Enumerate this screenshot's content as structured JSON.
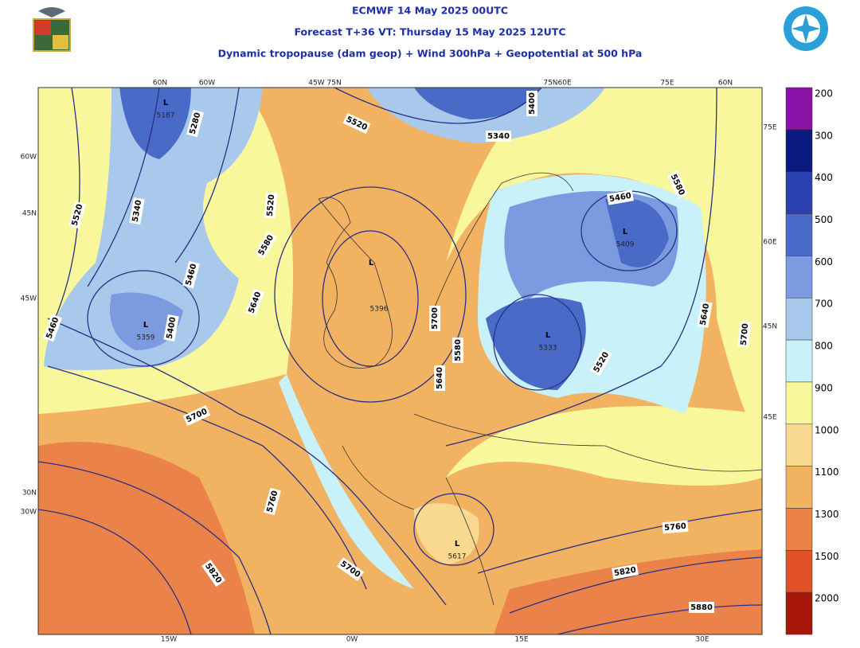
{
  "header": {
    "lines": [
      "ECMWF 14 May 2025 00UTC",
      "Forecast T+36 VT: Thursday 15 May 2025 12UTC",
      "Dynamic tropopause (dam geop) + Wind 300hPa + Geopotential at 500 hPa"
    ]
  },
  "colorbar": {
    "levels": [
      {
        "value": 200,
        "color": "#8a12a6"
      },
      {
        "value": 300,
        "color": "#0b1a7e"
      },
      {
        "value": 400,
        "color": "#2b40b0"
      },
      {
        "value": 500,
        "color": "#4a6ac8"
      },
      {
        "value": 600,
        "color": "#7c9ae0"
      },
      {
        "value": 700,
        "color": "#a9c9ec"
      },
      {
        "value": 800,
        "color": "#c9f1f9"
      },
      {
        "value": 900,
        "color": "#f9f79b"
      },
      {
        "value": 1000,
        "color": "#f8d98f"
      },
      {
        "value": 1100,
        "color": "#f1b262"
      },
      {
        "value": 1300,
        "color": "#ea8249"
      },
      {
        "value": 1500,
        "color": "#e05129"
      },
      {
        "value": 2000,
        "color": "#a8180a"
      }
    ]
  },
  "map": {
    "lows": [
      {
        "symbol": "L",
        "value": "5187"
      },
      {
        "symbol": "L",
        "value": "5359"
      },
      {
        "symbol": "L",
        "value": "5396"
      },
      {
        "symbol": "L",
        "value": "5409"
      },
      {
        "symbol": "L",
        "value": "5333"
      },
      {
        "symbol": "L",
        "value": "5617"
      }
    ],
    "contour_labels": [
      "5280",
      "5340",
      "5520",
      "5460",
      "5400",
      "5460",
      "5520",
      "5580",
      "5640",
      "5520",
      "5400",
      "5340",
      "5700",
      "5640",
      "5580",
      "5460",
      "5580",
      "5520",
      "5640",
      "5700",
      "5700",
      "5760",
      "5820",
      "5700",
      "5760",
      "5820",
      "5880"
    ],
    "grid_labels": {
      "top": [
        "60N",
        "60W",
        "45W 75N",
        "75N60E",
        "75E",
        "60N"
      ],
      "left": [
        "60W",
        "45N",
        "45W",
        "30N",
        "30W"
      ],
      "bottom": [
        "15W",
        "0W",
        "15E",
        "30E"
      ],
      "right": [
        "75E",
        "60E",
        "45N",
        "45E"
      ]
    }
  }
}
